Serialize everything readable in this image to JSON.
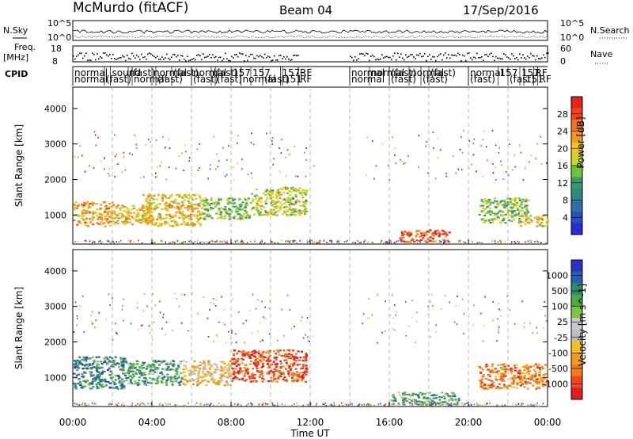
{
  "header": {
    "station": "McMurdo (fitACF)",
    "beam": "Beam 04",
    "date": "17/Sep/2016"
  },
  "panel_labels": {
    "nsky": "N.Sky",
    "nsearch": "N.Search",
    "freq_line1": "Freq.",
    "freq_line2": "[MHz]",
    "nave": "Nave",
    "cpid": "CPID",
    "nsky_ticks": [
      "10^5",
      "10^0"
    ],
    "nsearch_ticks": [
      "10^5",
      "10^0"
    ],
    "freq_ticks": [
      "18",
      "8"
    ],
    "nave_ticks": [
      "60",
      "0"
    ]
  },
  "cpid": {
    "row1": [
      {
        "t": 0.0,
        "label": "normal"
      },
      {
        "t": 1.9,
        "label": "sound"
      },
      {
        "t": 2.8,
        "label": "(fast)"
      },
      {
        "t": 4.0,
        "label": "normal"
      },
      {
        "t": 5.0,
        "label": "(fast)"
      },
      {
        "t": 6.0,
        "label": "normal"
      },
      {
        "t": 7.0,
        "label": "(fast)"
      },
      {
        "t": 8.0,
        "label": "157"
      },
      {
        "t": 9.0,
        "label": "157"
      },
      {
        "t": 10.5,
        "label": "157"
      },
      {
        "t": 11.4,
        "label": "RF"
      },
      {
        "t": 14.0,
        "label": "normal"
      },
      {
        "t": 15.0,
        "label": "normal"
      },
      {
        "t": 16.0,
        "label": "(fast)"
      },
      {
        "t": 17.0,
        "label": "normal"
      },
      {
        "t": 18.0,
        "label": "(fast)"
      },
      {
        "t": 20.0,
        "label": "normal"
      },
      {
        "t": 21.5,
        "label": "157"
      },
      {
        "t": 22.6,
        "label": "157"
      },
      {
        "t": 23.3,
        "label": "RF"
      }
    ],
    "row2": [
      {
        "t": 0.0,
        "label": "normal"
      },
      {
        "t": 1.6,
        "label": "(fast)"
      },
      {
        "t": 3.0,
        "label": "normal"
      },
      {
        "t": 4.2,
        "label": "(fast)"
      },
      {
        "t": 6.0,
        "label": "(fast)"
      },
      {
        "t": 7.2,
        "label": "(fast)"
      },
      {
        "t": 8.5,
        "label": "normal"
      },
      {
        "t": 9.6,
        "label": "(fast)"
      },
      {
        "t": 10.6,
        "label": "151"
      },
      {
        "t": 11.4,
        "label": "RF"
      },
      {
        "t": 14.0,
        "label": "normal"
      },
      {
        "t": 16.0,
        "label": "(fast)"
      },
      {
        "t": 17.6,
        "label": "(fast)"
      },
      {
        "t": 20.0,
        "label": "(fast)"
      },
      {
        "t": 22.0,
        "label": "(fast)"
      },
      {
        "t": 22.8,
        "label": "151"
      },
      {
        "t": 23.5,
        "label": "RF"
      }
    ]
  },
  "colorbars": {
    "power": {
      "label": "Power [dB]",
      "ticks": [
        "28",
        "24",
        "20",
        "16",
        "12",
        "8",
        "4"
      ],
      "colors": [
        "#e8201c",
        "#f2421b",
        "#f5731a",
        "#f59a1e",
        "#f4c41e",
        "#c9d81e",
        "#6cc23f",
        "#3a9a6a",
        "#2f8a7e",
        "#2e6fa8",
        "#2a4fbf",
        "#2a2ad6"
      ]
    },
    "velocity": {
      "label": "Velocity [m s^-1]",
      "ticks": [
        "1000",
        "500",
        "100",
        "25",
        "-25",
        "-100",
        "-500",
        "-1000"
      ],
      "colors": [
        "#2a35c8",
        "#2a5db0",
        "#2e8c6e",
        "#4aa847",
        "#7dc43a",
        "#c9c9c9",
        "#bdbdbd",
        "#f3c21e",
        "#f59a1e",
        "#f57a1a",
        "#f04a18",
        "#e01f1c"
      ]
    }
  },
  "chart_data": [
    {
      "type": "heatmap",
      "name": "",
      "xlabel": "Time UT",
      "ylabel": "Slant Range [km]",
      "x_ticks": [
        "00:00",
        "04:00",
        "08:00",
        "12:00",
        "16:00",
        "20:00",
        "00:00"
      ],
      "xlim_hours": [
        0,
        24
      ],
      "y_ticks": [
        1000,
        2000,
        3000,
        4000
      ],
      "ylim": [
        180,
        4600
      ],
      "regions": [
        {
          "t0": 0.0,
          "t1": 2.0,
          "r0": 700,
          "r1": 1400,
          "level": 22
        },
        {
          "t0": 2.0,
          "t1": 4.0,
          "r0": 750,
          "r1": 1300,
          "level": 18
        },
        {
          "t0": 3.5,
          "t1": 6.5,
          "r0": 700,
          "r1": 1600,
          "level": 20
        },
        {
          "t0": 6.5,
          "t1": 9.0,
          "r0": 900,
          "r1": 1500,
          "level": 14
        },
        {
          "t0": 9.0,
          "t1": 11.8,
          "r0": 1000,
          "r1": 1800,
          "level": 16
        },
        {
          "t0": 16.5,
          "t1": 19.0,
          "r0": 250,
          "r1": 600,
          "level": 26
        },
        {
          "t0": 20.5,
          "t1": 23.0,
          "r0": 800,
          "r1": 1500,
          "level": 14
        },
        {
          "t0": 22.5,
          "t1": 24.0,
          "r0": 700,
          "r1": 1000,
          "level": 20
        }
      ]
    },
    {
      "type": "heatmap",
      "name": "",
      "xlabel": "Time UT",
      "ylabel": "Slant Range [km]",
      "x_ticks": [
        "00:00",
        "04:00",
        "08:00",
        "12:00",
        "16:00",
        "20:00",
        "00:00"
      ],
      "xlim_hours": [
        0,
        24
      ],
      "y_ticks": [
        1000,
        2000,
        3000,
        4000
      ],
      "ylim": [
        180,
        4600
      ],
      "regions": [
        {
          "t0": 0.0,
          "t1": 2.6,
          "r0": 700,
          "r1": 1600,
          "level": 300
        },
        {
          "t0": 2.6,
          "t1": 5.5,
          "r0": 800,
          "r1": 1500,
          "level": 150
        },
        {
          "t0": 5.5,
          "t1": 8.0,
          "r0": 800,
          "r1": 1500,
          "level": -60
        },
        {
          "t0": 8.0,
          "t1": 11.8,
          "r0": 900,
          "r1": 1800,
          "level": -400
        },
        {
          "t0": 16.0,
          "t1": 19.5,
          "r0": 250,
          "r1": 600,
          "level": 150
        },
        {
          "t0": 20.5,
          "t1": 24.0,
          "r0": 700,
          "r1": 1400,
          "level": -300
        }
      ]
    }
  ]
}
